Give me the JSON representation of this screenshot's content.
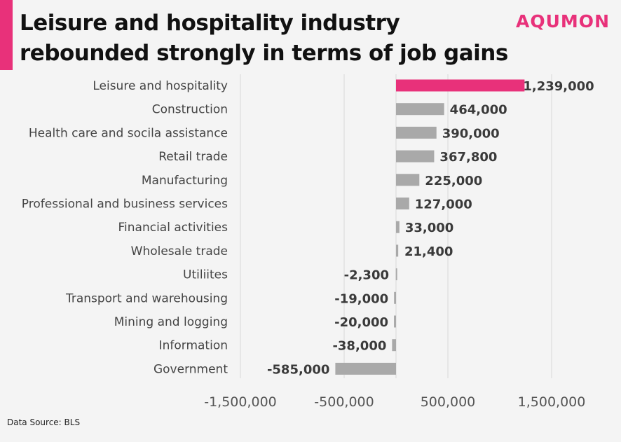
{
  "header": {
    "title_line1": "Leisure and hospitality industry",
    "title_line2": "rebounded strongly in terms of job gains",
    "brand": "AQUMON"
  },
  "footer": {
    "source": "Data Source: BLS"
  },
  "colors": {
    "accent": "#e8317a",
    "bar": "#a9a9a9",
    "grid": "#d9d9d9"
  },
  "chart_data": {
    "type": "bar",
    "orientation": "horizontal",
    "categories": [
      "Leisure and hospitality",
      "Construction",
      "Health care and socila assistance",
      "Retail trade",
      "Manufacturing",
      "Professional and business services",
      "Financial activities",
      "Wholesale trade",
      "Utiliites",
      "Transport and warehousing",
      "Mining and logging",
      "Information",
      "Government"
    ],
    "values": [
      1239000,
      464000,
      390000,
      367800,
      225000,
      127000,
      33000,
      21400,
      -2300,
      -19000,
      -20000,
      -38000,
      -585000
    ],
    "value_labels": [
      "1,239,000",
      "464,000",
      "390,000",
      "367,800",
      "225,000",
      "127,000",
      "33,000",
      "21,400",
      "-2,300",
      "-19,000",
      "-20,000",
      "-38,000",
      "-585,000"
    ],
    "highlight_index": 0,
    "xlim": [
      -1500000,
      1500000
    ],
    "x_ticks": [
      -1500000,
      -500000,
      500000,
      1500000
    ],
    "x_tick_labels": [
      "-1,500,000",
      "-500,000",
      "500,000",
      "1,500,000"
    ],
    "grid": true
  }
}
